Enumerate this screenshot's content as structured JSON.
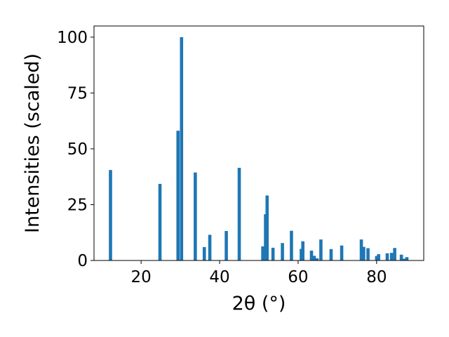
{
  "chart_data": {
    "type": "bar",
    "xlabel": "2θ (°)",
    "ylabel": "Intensities (scaled)",
    "xlim": [
      8,
      92
    ],
    "ylim": [
      0,
      105
    ],
    "x_ticks": [
      20,
      40,
      60,
      80
    ],
    "y_ticks": [
      0,
      25,
      50,
      75,
      100
    ],
    "grid": false,
    "bar_color": "#1f77b4",
    "series": [
      {
        "x": [
          12.2,
          24.8,
          29.4,
          30.3,
          33.8,
          36.1,
          37.5,
          41.7,
          45.0,
          51.0,
          51.7,
          52.1,
          53.6,
          56.0,
          58.3,
          60.8,
          61.2,
          63.4,
          64.1,
          64.8,
          65.8,
          68.4,
          71.1,
          76.1,
          76.7,
          77.8,
          80.0,
          80.5,
          82.7,
          83.8,
          84.6,
          86.3,
          87.1,
          87.7
        ],
        "y": [
          40.5,
          34.3,
          58.1,
          100.0,
          39.4,
          6.0,
          11.5,
          13.2,
          41.5,
          6.3,
          20.7,
          29.1,
          5.7,
          7.8,
          13.3,
          5.2,
          8.6,
          4.4,
          2.1,
          1.0,
          9.4,
          5.1,
          6.7,
          9.4,
          6.1,
          5.5,
          2.0,
          2.8,
          3.2,
          3.4,
          5.6,
          2.6,
          0.8,
          1.5
        ]
      }
    ]
  }
}
